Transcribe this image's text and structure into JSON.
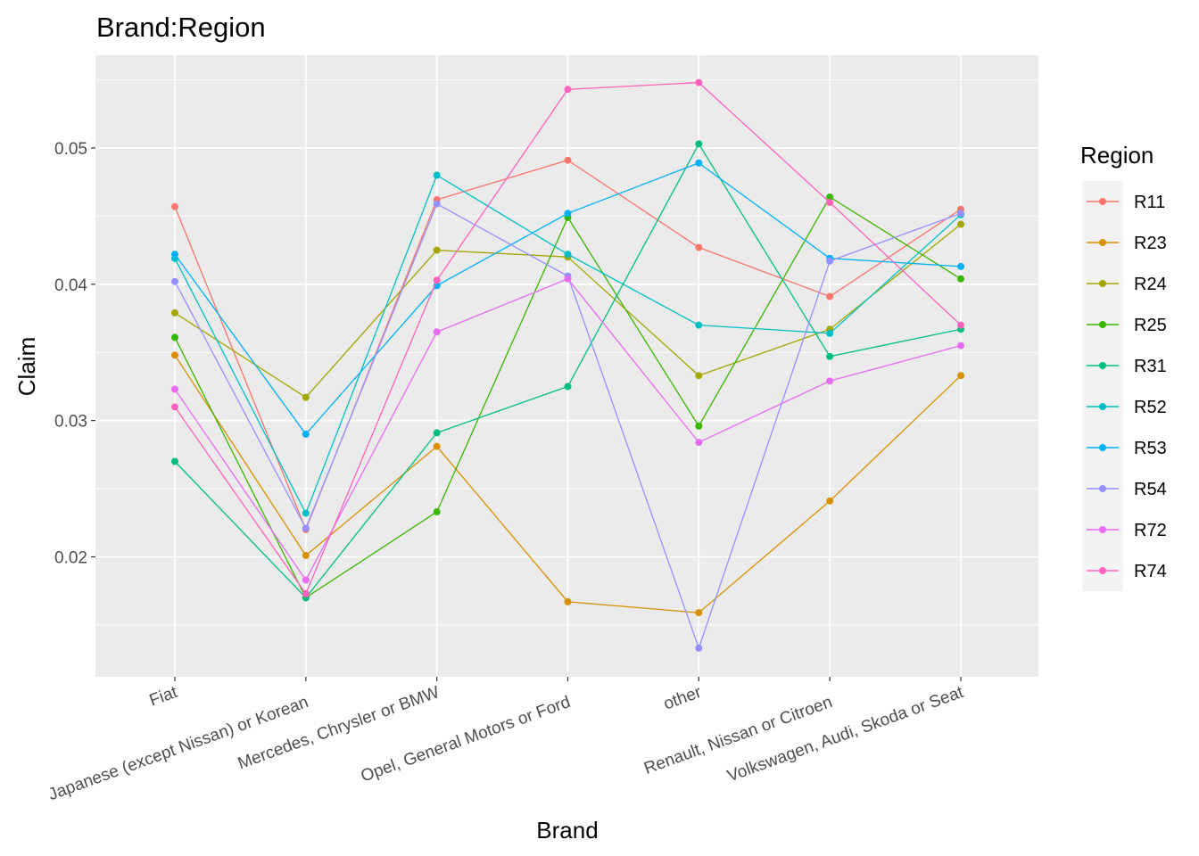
{
  "chart_data": {
    "type": "line",
    "title": "Brand:Region",
    "xlabel": "Brand",
    "ylabel": "Claim",
    "ylim": [
      0.0112,
      0.0568
    ],
    "yticks": [
      0.02,
      0.03,
      0.04,
      0.05
    ],
    "ytick_labels": [
      "0.02",
      "0.03",
      "0.04",
      "0.05"
    ],
    "grid": true,
    "legend_title": "Region",
    "legend_position": "right",
    "categories": [
      "Fiat",
      "Japanese (except Nissan) or Korean",
      "Mercedes, Chrysler or BMW",
      "Opel, General Motors or Ford",
      "other",
      "Renault, Nissan or Citroen",
      "Volkswagen, Audi, Skoda or Seat"
    ],
    "series": [
      {
        "name": "R11",
        "color": "#F8766D",
        "values": [
          0.0457,
          0.022,
          0.0462,
          0.0491,
          0.0427,
          0.0391,
          0.0455
        ]
      },
      {
        "name": "R23",
        "color": "#D89000",
        "values": [
          0.0348,
          0.0201,
          0.0281,
          0.0167,
          0.0159,
          0.0241,
          0.0333
        ]
      },
      {
        "name": "R24",
        "color": "#A3A500",
        "values": [
          0.0379,
          0.0317,
          0.0425,
          0.042,
          0.0333,
          0.0367,
          0.0444
        ]
      },
      {
        "name": "R25",
        "color": "#39B600",
        "values": [
          0.0361,
          0.017,
          0.0233,
          0.0449,
          0.0296,
          0.0464,
          0.0404
        ]
      },
      {
        "name": "R31",
        "color": "#00BF7D",
        "values": [
          0.027,
          0.017,
          0.0291,
          0.0325,
          0.0503,
          0.0347,
          0.0367
        ]
      },
      {
        "name": "R52",
        "color": "#00BFC4",
        "values": [
          0.0419,
          0.0232,
          0.048,
          0.0422,
          0.037,
          0.0364,
          0.0451
        ]
      },
      {
        "name": "R53",
        "color": "#00B0F6",
        "values": [
          0.0422,
          0.029,
          0.0399,
          0.0452,
          0.0489,
          0.0419,
          0.0413
        ]
      },
      {
        "name": "R54",
        "color": "#9590FF",
        "values": [
          0.0402,
          0.0221,
          0.0459,
          0.0406,
          0.0133,
          0.0417,
          0.0452
        ]
      },
      {
        "name": "R72",
        "color": "#E76BF3",
        "values": [
          0.0323,
          0.0183,
          0.0365,
          0.0404,
          0.0284,
          0.0329,
          0.0355
        ]
      },
      {
        "name": "R74",
        "color": "#FF62BC",
        "values": [
          0.031,
          0.0173,
          0.0403,
          0.0543,
          0.0548,
          0.046,
          0.037
        ]
      }
    ]
  }
}
